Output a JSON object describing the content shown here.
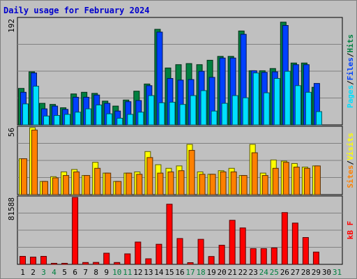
{
  "title": "Daily usage for February 2024",
  "colors": {
    "hits": "#008040",
    "files": "#0040ff",
    "pages": "#00e0ff",
    "visits": "#ffff00",
    "sites": "#ff8000",
    "kb": "#ff0000",
    "weekday_label": "#000000",
    "weekend_label": "#008040",
    "panel_bg": "#c0c0c0",
    "grid": "#808080"
  },
  "chart_data": [
    {
      "type": "bar",
      "x": [
        1,
        2,
        3,
        4,
        5,
        6,
        7,
        8,
        9,
        10,
        11,
        12,
        13,
        14,
        15,
        16,
        17,
        18,
        19,
        20,
        21,
        22,
        23,
        24,
        25,
        26,
        27,
        28,
        29,
        30,
        31
      ],
      "weekend_days": [
        3,
        4,
        10,
        11,
        17,
        18,
        24,
        25,
        31
      ],
      "ylim": [
        0,
        192
      ],
      "ymax_label": "192",
      "legend": [
        "Pages",
        "Files",
        "Hits"
      ],
      "series": [
        {
          "name": "Hits",
          "values": [
            66,
            96,
            39,
            37,
            31,
            56,
            59,
            57,
            43,
            34,
            45,
            61,
            74,
            173,
            103,
            109,
            111,
            109,
            117,
            124,
            124,
            170,
            98,
            98,
            102,
            186,
            112,
            112,
            68,
            0,
            0
          ]
        },
        {
          "name": "Files",
          "values": [
            59,
            94,
            29,
            34,
            28,
            50,
            50,
            54,
            39,
            25,
            42,
            44,
            71,
            168,
            84,
            81,
            82,
            97,
            86,
            121,
            121,
            164,
            98,
            95,
            96,
            180,
            109,
            109,
            75,
            0,
            0
          ]
        },
        {
          "name": "Pages",
          "values": [
            38,
            70,
            16,
            17,
            19,
            23,
            29,
            36,
            20,
            12,
            19,
            23,
            53,
            40,
            41,
            37,
            53,
            62,
            25,
            39,
            53,
            49,
            94,
            58,
            84,
            97,
            71,
            59,
            24,
            0,
            0
          ]
        }
      ]
    },
    {
      "type": "bar",
      "x": [
        1,
        2,
        3,
        4,
        5,
        6,
        7,
        8,
        9,
        10,
        11,
        12,
        13,
        14,
        15,
        16,
        17,
        18,
        19,
        20,
        21,
        22,
        23,
        24,
        25,
        26,
        27,
        28,
        29,
        30,
        31
      ],
      "ylim": [
        0,
        56
      ],
      "ymax_label": "56",
      "legend": [
        "Sites",
        "Visits"
      ],
      "series": [
        {
          "name": "Visits",
          "values": [
            30,
            56,
            11,
            15,
            19,
            21,
            16,
            27,
            18,
            11,
            18,
            19,
            36,
            25,
            22,
            24,
            42,
            19,
            17,
            20,
            22,
            16,
            42,
            18,
            29,
            28,
            26,
            23,
            24,
            0,
            0
          ]
        },
        {
          "name": "Sites",
          "values": [
            30,
            54,
            11,
            14,
            16,
            19,
            16,
            22,
            18,
            11,
            18,
            17,
            31,
            18,
            19,
            20,
            37,
            17,
            17,
            19,
            19,
            16,
            35,
            16,
            22,
            27,
            23,
            22,
            24,
            0,
            0
          ]
        }
      ]
    },
    {
      "type": "bar",
      "x": [
        1,
        2,
        3,
        4,
        5,
        6,
        7,
        8,
        9,
        10,
        11,
        12,
        13,
        14,
        15,
        16,
        17,
        18,
        19,
        20,
        21,
        22,
        23,
        24,
        25,
        26,
        27,
        28,
        29,
        30,
        31
      ],
      "ylim": [
        0,
        81588
      ],
      "ymax_label": "81588",
      "legend": [
        "kB F"
      ],
      "series": [
        {
          "name": "kB F",
          "values": [
            9750,
            8850,
            9750,
            1300,
            1300,
            81588,
            2300,
            2400,
            13600,
            2300,
            12800,
            27200,
            6800,
            24500,
            73300,
            31500,
            2100,
            30500,
            9600,
            23300,
            53700,
            44400,
            19200,
            19200,
            20000,
            63100,
            50300,
            32700,
            15000,
            0,
            0
          ]
        }
      ]
    }
  ]
}
